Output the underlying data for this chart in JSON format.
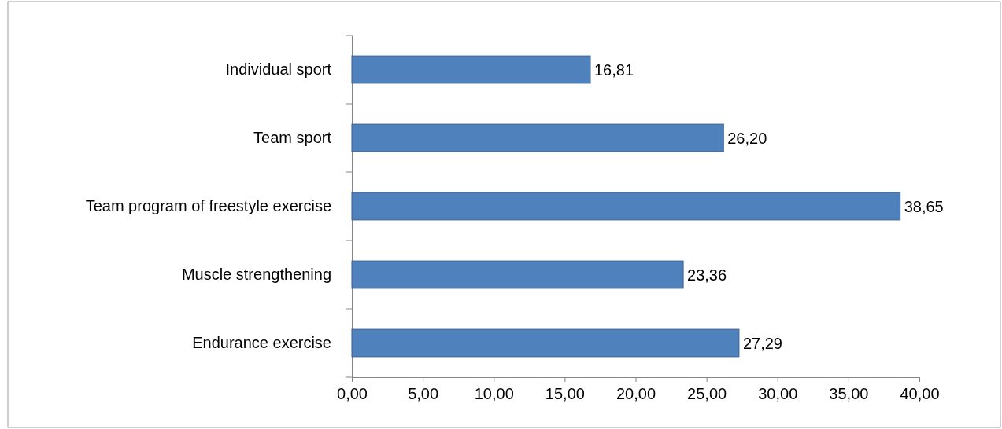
{
  "chart_data": {
    "type": "bar",
    "orientation": "horizontal",
    "categories": [
      "Individual sport",
      "Team sport",
      "Team program of freestyle exercise",
      "Muscle strengthening",
      "Endurance exercise"
    ],
    "values": [
      16.81,
      26.2,
      38.65,
      23.36,
      27.29
    ],
    "value_labels": [
      "16,81",
      "26,20",
      "38,65",
      "23,36",
      "27,29"
    ],
    "color": "#4f81bd",
    "xlim": [
      0,
      40
    ],
    "xticks": [
      {
        "value": 0,
        "label": "0,00"
      },
      {
        "value": 5,
        "label": "5,00"
      },
      {
        "value": 10,
        "label": "10,00"
      },
      {
        "value": 15,
        "label": "15,00"
      },
      {
        "value": 20,
        "label": "20,00"
      },
      {
        "value": 25,
        "label": "25,00"
      },
      {
        "value": 30,
        "label": "30,00"
      },
      {
        "value": 35,
        "label": "35,00"
      },
      {
        "value": 40,
        "label": "40,00"
      }
    ],
    "grid": false
  }
}
